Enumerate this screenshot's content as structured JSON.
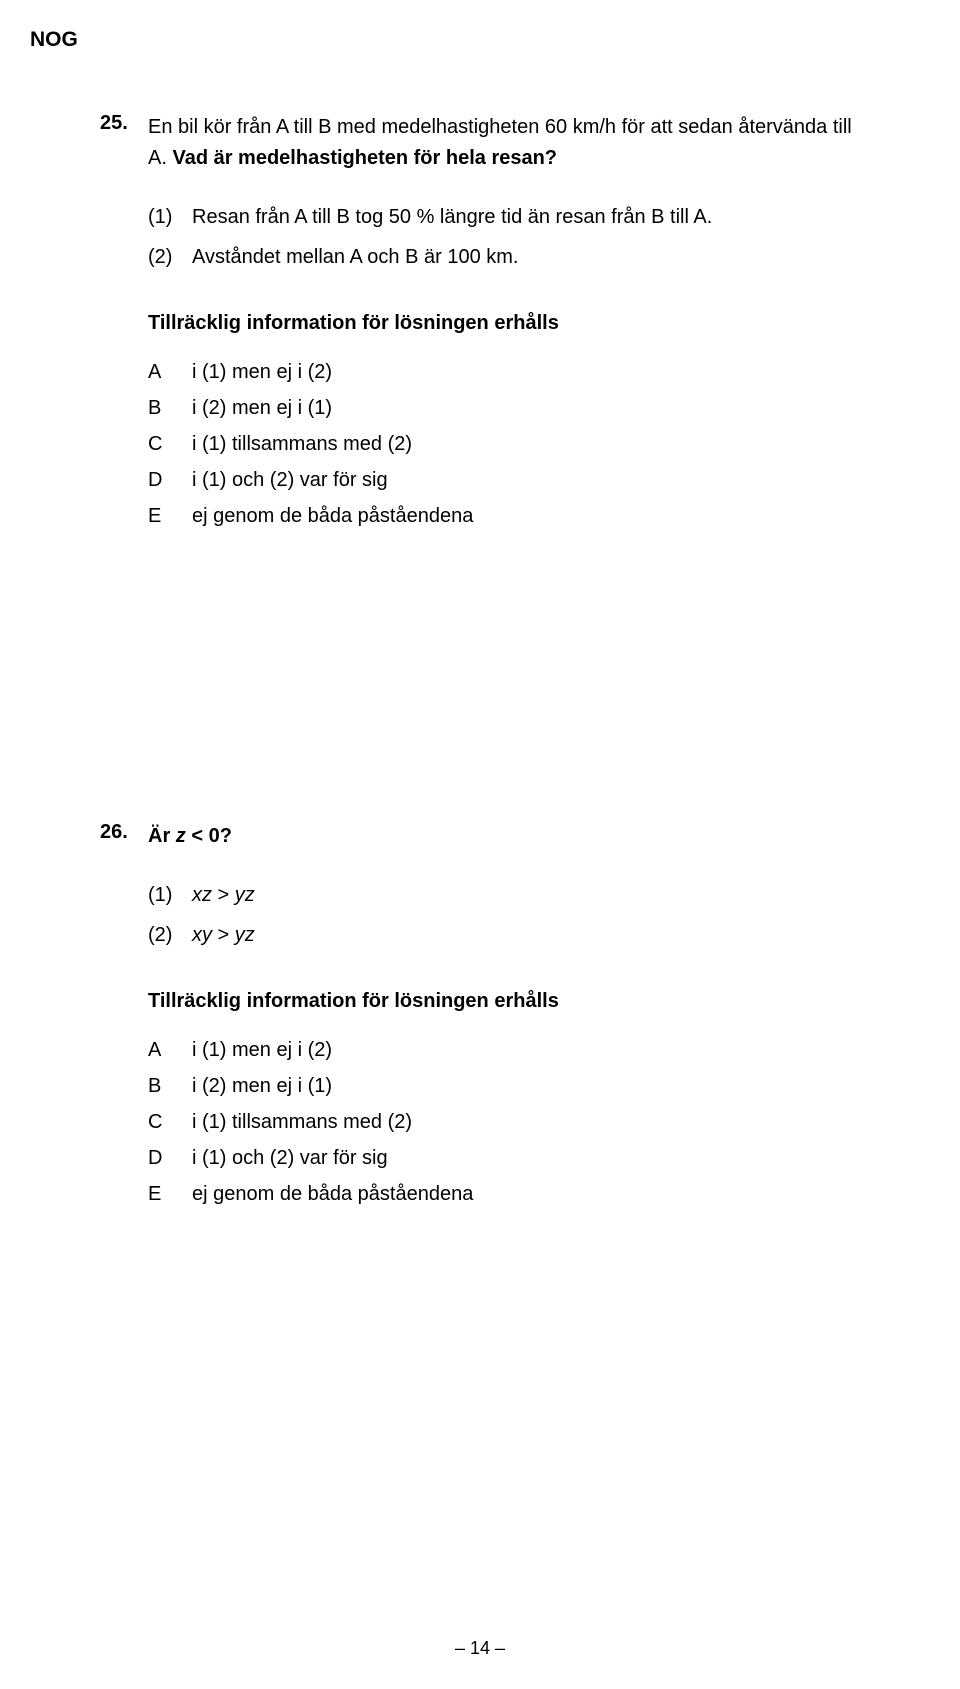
{
  "header": "NOG",
  "q25": {
    "number": "25.",
    "text_part1": "En bil kör från A till B med medelhastigheten 60 km/h för att sedan återvända till A. ",
    "text_part2": "Vad är medelhastigheten för hela resan?",
    "statements": [
      {
        "label": "(1)",
        "text": "Resan från A till B tog 50 % längre tid än resan från B till A."
      },
      {
        "label": "(2)",
        "text": "Avståndet mellan A och B är 100 km."
      }
    ],
    "suff_heading": "Tillräcklig information för lösningen erhålls",
    "options": [
      {
        "label": "A",
        "text": "i (1) men ej i (2)"
      },
      {
        "label": "B",
        "text": "i (2) men ej i (1)"
      },
      {
        "label": "C",
        "text": "i (1) tillsammans med (2)"
      },
      {
        "label": "D",
        "text": "i (1) och (2) var för sig"
      },
      {
        "label": "E",
        "text": "ej genom de båda påståendena"
      }
    ]
  },
  "q26": {
    "number": "26.",
    "text_part1": "Är ",
    "text_italic": "z",
    "text_part2": " < 0?",
    "statements": [
      {
        "label": "(1)",
        "italic1": "xz",
        "mid": " > ",
        "italic2": "yz"
      },
      {
        "label": "(2)",
        "italic1": "xy",
        "mid": " > ",
        "italic2": "yz"
      }
    ],
    "suff_heading": "Tillräcklig information för lösningen erhålls",
    "options": [
      {
        "label": "A",
        "text": "i (1) men ej i (2)"
      },
      {
        "label": "B",
        "text": "i (2) men ej i (1)"
      },
      {
        "label": "C",
        "text": "i (1) tillsammans med (2)"
      },
      {
        "label": "D",
        "text": "i (1) och (2) var för sig"
      },
      {
        "label": "E",
        "text": "ej genom de båda påståendena"
      }
    ]
  },
  "page_number": "– 14 –"
}
